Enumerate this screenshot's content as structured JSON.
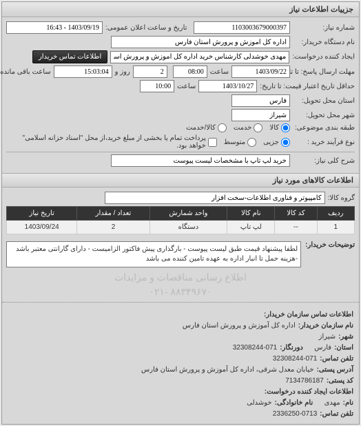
{
  "panel_title": "جزییات اطلاعات نیاز",
  "form": {
    "request_no_label": "شماره نیاز:",
    "request_no": "1103003679000397",
    "announce_label": "تاریخ و ساعت اعلان عمومی:",
    "announce_value": "1403/09/19 - 16:43",
    "buyer_label": "نام دستگاه خریدار:",
    "buyer_value": "اداره کل آموزش و پرورش استان فارس",
    "requester_label": "ایجاد کننده درخواست:",
    "requester_value": "مهدی خوشدلی کارشناس خرید اداره کل آموزش و پرورش استان فارس",
    "contact_btn": "اطلاعات تماس خریدار",
    "deadline_label": "مهلت ارسال پاسخ: تا تاریخ:",
    "deadline_date": "1403/09/22",
    "time_label": "ساعت",
    "deadline_time": "08:00",
    "day_label": "روز و",
    "day_value": "2",
    "remaining_label": "ساعت باقی مانده",
    "remaining_value": "15:03:04",
    "valid_label": "حداقل تاریخ اعتبار قیمت: تا تاریخ:",
    "valid_date": "1403/10/27",
    "valid_time": "10:00",
    "delivery_province_label": "استان محل تحویل:",
    "delivery_province": "فارس",
    "delivery_city_label": "شهر محل تحویل:",
    "delivery_city": "شیراز",
    "category_label": "طبقه بندی موضوعی:",
    "cat_all": "کالا",
    "cat_service": "خدمت",
    "cat_goods": "کالا/خدمت",
    "purchase_type_label": "نوع فرآیند خرید :",
    "pt_low": "جزیی",
    "pt_mid": "متوسط",
    "pt_note": "پرداخت تمام یا بخشی از مبلغ خرید،از محل \"اسناد خزانه اسلامی\" خواهد بود.",
    "general_desc_label": "شرح کلی نیاز:",
    "general_desc": "خرید لپ تاپ با مشخصات لیست پیوست"
  },
  "goods_section_title": "اطلاعات کالاهای مورد نیاز",
  "group_label": "گروه کالا:",
  "group_value": "کامپیوتر و فناوری اطلاعات-سخت افزار",
  "table": {
    "headers": [
      "ردیف",
      "کد کالا",
      "نام کالا",
      "واحد شمارش",
      "تعداد / مقدار",
      "تاریخ نیاز"
    ],
    "row": [
      "1",
      "--",
      "لپ تاپ",
      "دستگاه",
      "2",
      "1403/09/24"
    ]
  },
  "desc_label": "توضیحات خریدار:",
  "desc_text": "لطفا پیشنهاد قیمت طبق لیست پیوست - بارگذاری پیش فاکتور الزامیست - دارای گارانتی معتبر باشد -هزینه حمل تا انبار اداره به عهده تامین کننده می باشد",
  "watermark": "اطلاع رسانی مناقصات و مزایدات",
  "watermark2": "۸۸۳۴۹۶۷۰ -۰۲۱",
  "contact": {
    "title": "اطلاعات تماس سازمان خریدار:",
    "org_label": "نام سازمان خریدار:",
    "org_value": "اداره کل آموزش و پرورش استان فارس",
    "city_label": "شهر:",
    "city_value": "شیراز",
    "province_label": "استان:",
    "province_value": "فارس",
    "fax_label": "دورنگار:",
    "fax_value": "32308244-071",
    "phone_label": "تلفن تماس:",
    "phone_value": "32308244-071",
    "address_label": "آدرس پستی:",
    "address_value": "خیابان معدل شرقی، اداره کل آموزش و پرورش استان فارس",
    "postal_label": "کد پستی:",
    "postal_value": "7134786187",
    "creator_title": "اطلاعات ایجاد کننده درخواست:",
    "name_label": "نام:",
    "name_value": "مهدی",
    "lname_label": "نام خانوادگی:",
    "lname_value": "خوشدلی",
    "cphone_label": "تلفن تماس:",
    "cphone_value": "2336250-0713"
  }
}
